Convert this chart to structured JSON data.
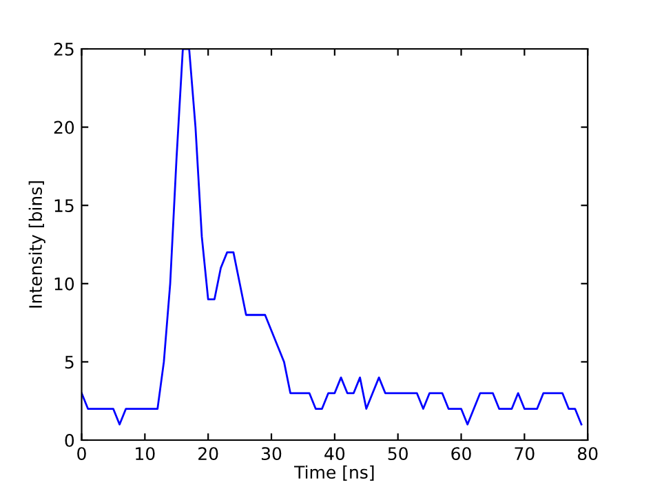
{
  "chart_data": {
    "type": "line",
    "xlabel": "Time [ns]",
    "ylabel": "Intensity [bins]",
    "x": [
      0,
      1,
      2,
      3,
      4,
      5,
      6,
      7,
      8,
      9,
      10,
      11,
      12,
      13,
      14,
      15,
      16,
      17,
      18,
      19,
      20,
      21,
      22,
      23,
      24,
      25,
      26,
      27,
      28,
      29,
      30,
      31,
      32,
      33,
      34,
      35,
      36,
      37,
      38,
      39,
      40,
      41,
      42,
      43,
      44,
      45,
      46,
      47,
      48,
      49,
      50,
      51,
      52,
      53,
      54,
      55,
      56,
      57,
      58,
      59,
      60,
      61,
      62,
      63,
      64,
      65,
      66,
      67,
      68,
      69,
      70,
      71,
      72,
      73,
      74,
      75,
      76,
      77,
      78,
      79
    ],
    "series": [
      {
        "color": "#0000ff",
        "values": [
          3,
          2,
          2,
          2,
          2,
          2,
          1,
          2,
          2,
          2,
          2,
          2,
          2,
          5,
          10,
          18,
          25,
          25,
          20,
          13,
          9,
          9,
          11,
          12,
          12,
          10,
          8,
          8,
          8,
          8,
          7,
          6,
          5,
          3,
          3,
          3,
          3,
          2,
          2,
          3,
          3,
          4,
          3,
          3,
          4,
          2,
          3,
          4,
          3,
          3,
          3,
          3,
          3,
          3,
          2,
          3,
          3,
          3,
          2,
          2,
          2,
          1,
          2,
          3,
          3,
          3,
          2,
          2,
          2,
          3,
          2,
          2,
          2,
          3,
          3,
          3,
          3,
          2,
          2,
          1
        ]
      }
    ],
    "xlim": [
      0,
      80
    ],
    "ylim": [
      0,
      25
    ],
    "xticks": [
      0,
      10,
      20,
      30,
      40,
      50,
      60,
      70,
      80
    ],
    "yticks": [
      0,
      5,
      10,
      15,
      20,
      25
    ],
    "grid": false,
    "marker": "none",
    "line_style": "solid"
  }
}
